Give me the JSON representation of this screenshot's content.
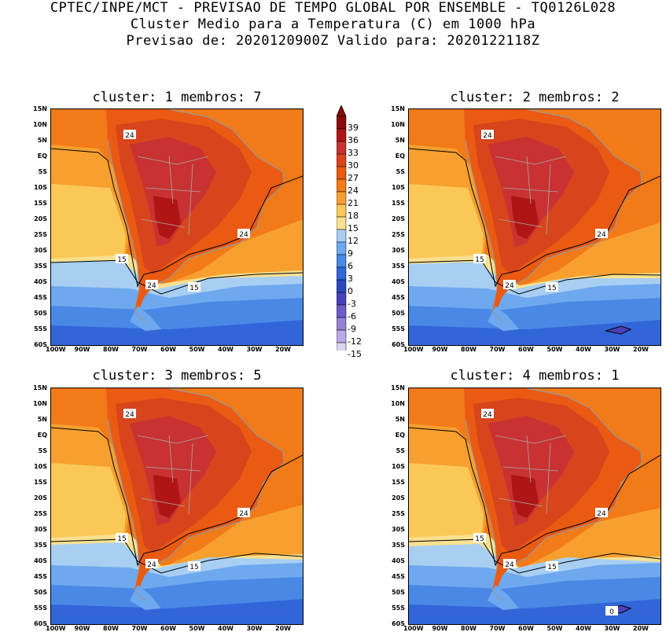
{
  "title": {
    "line1": "CPTEC/INPE/MCT - PREVISAO DE TEMPO GLOBAL POR ENSEMBLE - TQ0126L028",
    "line2": "Cluster Medio para a Temperatura (C) em 1000 hPa",
    "line3": "Previsao de: 2020120900Z   Valido para: 2020122118Z"
  },
  "panels": [
    {
      "label": "cluster: 1   membros: 7",
      "contours": [
        "24",
        "24",
        "15",
        "24",
        "15"
      ]
    },
    {
      "label": "cluster: 2   membros: 2",
      "contours": [
        "24",
        "24",
        "15",
        "24",
        "15"
      ]
    },
    {
      "label": "cluster: 3   membros: 5",
      "contours": [
        "24",
        "24",
        "15",
        "24",
        "15"
      ]
    },
    {
      "label": "cluster: 4   membros: 1",
      "contours": [
        "24",
        "24",
        "15",
        "24",
        "15",
        "0"
      ]
    }
  ],
  "lat_labels": [
    "15N",
    "10N",
    "5N",
    "EQ",
    "5S",
    "10S",
    "15S",
    "20S",
    "25S",
    "30S",
    "35S",
    "40S",
    "45S",
    "50S",
    "55S",
    "60S"
  ],
  "lon_labels": [
    "100W",
    "90W",
    "80W",
    "70W",
    "60W",
    "50W",
    "40W",
    "30W",
    "20W"
  ],
  "colorbar": {
    "levels": [
      "39",
      "36",
      "33",
      "30",
      "27",
      "24",
      "21",
      "18",
      "15",
      "12",
      "9",
      "6",
      "3",
      "0",
      "-3",
      "-6",
      "-9",
      "-12",
      "-15"
    ],
    "colors": [
      "#8b0a0a",
      "#b01515",
      "#c83232",
      "#d8441c",
      "#ea5a12",
      "#f27a18",
      "#f7a030",
      "#fbc858",
      "#f8e090",
      "#a8cff2",
      "#6ea8ee",
      "#4a88e6",
      "#3266d8",
      "#2a48c0",
      "#4a40b8",
      "#6e5cc8",
      "#9480d6",
      "#b8a8e4",
      "#ddd4f2"
    ]
  }
}
